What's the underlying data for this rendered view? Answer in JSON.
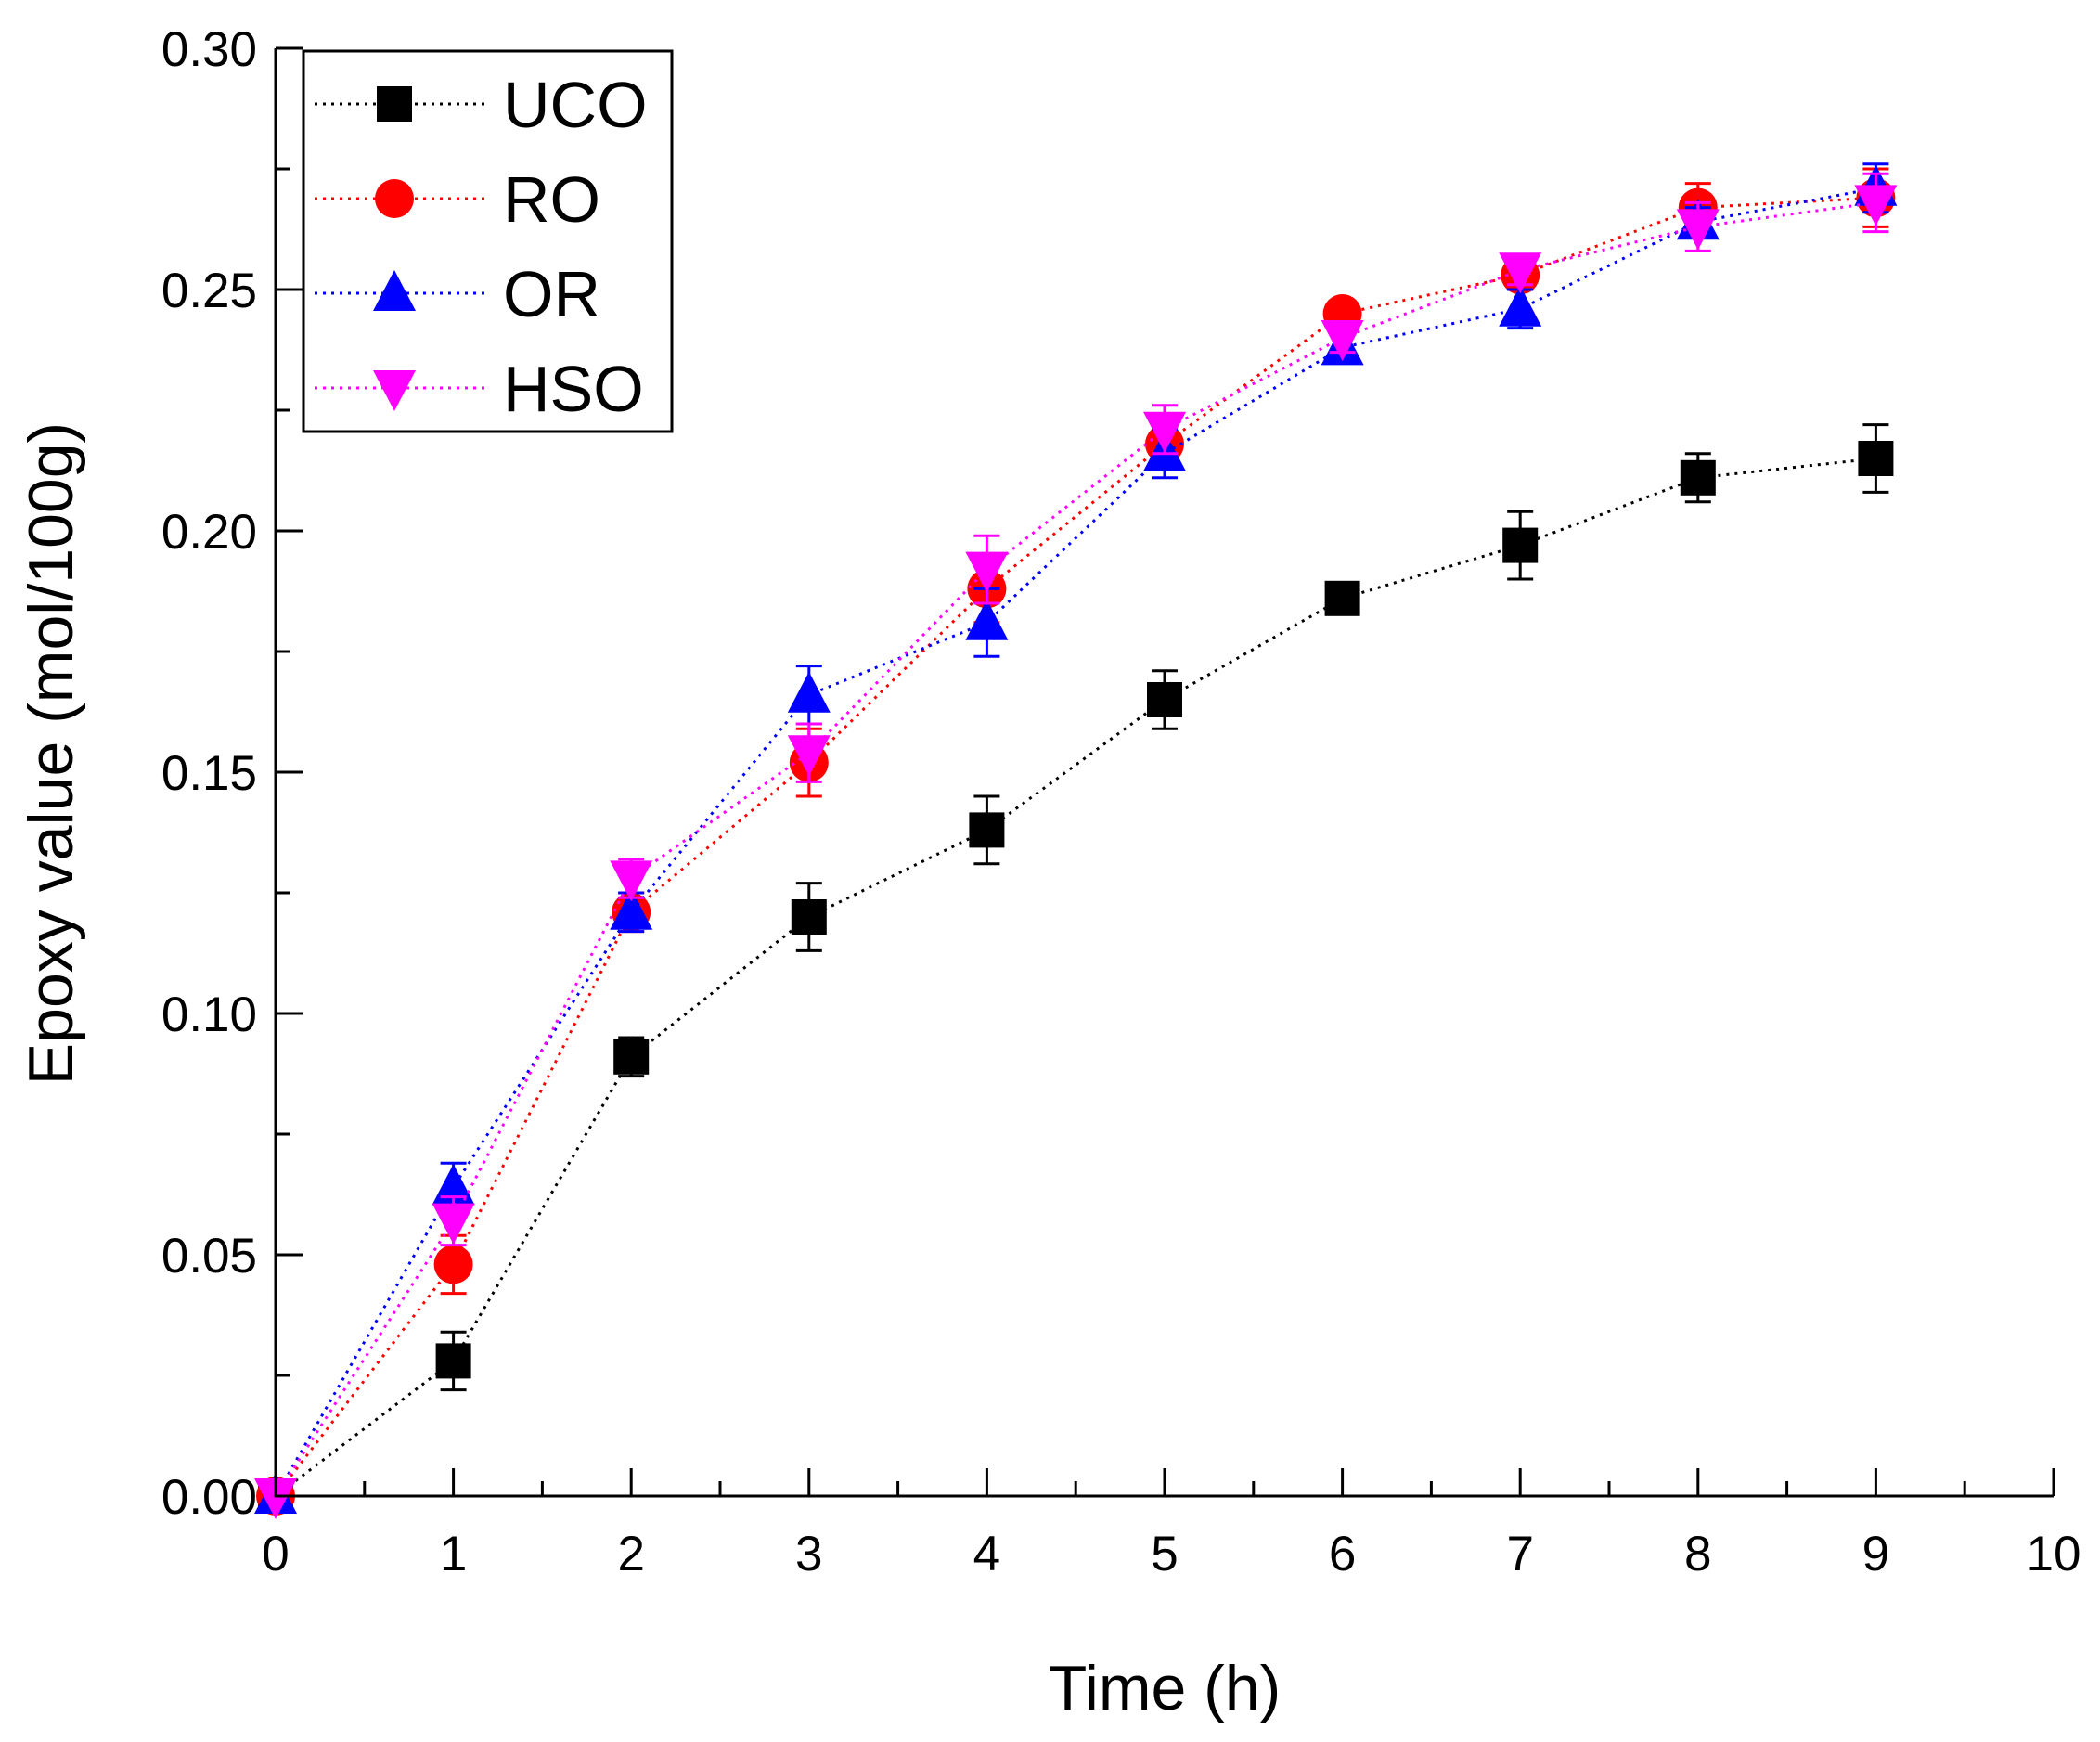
{
  "chart_data": {
    "type": "line",
    "title": "",
    "xlabel": "Time (h)",
    "ylabel": "Epoxy value (mol/100g)",
    "xlim": [
      0,
      10
    ],
    "ylim": [
      0,
      0.3
    ],
    "x_ticks": [
      "0",
      "1",
      "2",
      "3",
      "4",
      "5",
      "6",
      "7",
      "8",
      "9",
      "10"
    ],
    "y_ticks": [
      "0.00",
      "0.05",
      "0.10",
      "0.15",
      "0.20",
      "0.25",
      "0.30"
    ],
    "grid": false,
    "legend_position": "top-left",
    "x": [
      0,
      1,
      2,
      3,
      4,
      5,
      6,
      7,
      8,
      9
    ],
    "series": [
      {
        "name": "UCO",
        "marker": "square",
        "color": "#000000",
        "values": [
          0.0,
          0.028,
          0.091,
          0.12,
          0.138,
          0.165,
          0.186,
          0.197,
          0.211,
          0.215
        ],
        "errors": [
          0.0,
          0.006,
          0.004,
          0.007,
          0.007,
          0.006,
          0.002,
          0.007,
          0.005,
          0.007
        ]
      },
      {
        "name": "RO",
        "marker": "circle",
        "color": "#ff0000",
        "values": [
          0.0,
          0.048,
          0.121,
          0.152,
          0.188,
          0.218,
          0.245,
          0.253,
          0.267,
          0.269
        ],
        "errors": [
          0.0,
          0.006,
          0.004,
          0.007,
          0.007,
          0.005,
          0.002,
          0.003,
          0.005,
          0.006
        ]
      },
      {
        "name": "OR",
        "marker": "triangle-up",
        "color": "#0000ff",
        "values": [
          0.0,
          0.064,
          0.121,
          0.166,
          0.181,
          0.216,
          0.238,
          0.246,
          0.264,
          0.271
        ],
        "errors": [
          0.0,
          0.005,
          0.004,
          0.006,
          0.007,
          0.005,
          0.003,
          0.004,
          0.003,
          0.005
        ]
      },
      {
        "name": "HSO",
        "marker": "triangle-down",
        "color": "#ff00ff",
        "values": [
          0.0,
          0.057,
          0.128,
          0.154,
          0.192,
          0.221,
          0.24,
          0.254,
          0.263,
          0.268
        ],
        "errors": [
          0.0,
          0.005,
          0.004,
          0.006,
          0.007,
          0.005,
          0.003,
          0.003,
          0.005,
          0.006
        ]
      }
    ]
  }
}
